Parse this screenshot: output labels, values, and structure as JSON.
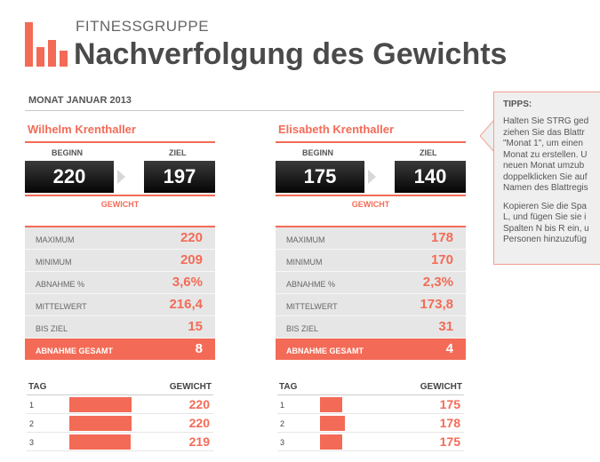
{
  "header": {
    "brand": "FITNESSGRUPPE",
    "title": "Nachverfolgung des Gewichts"
  },
  "month": "MONAT JANUAR 2013",
  "labels": {
    "start": "BEGINN",
    "goal": "ZIEL",
    "weight": "GEWICHT",
    "stats": [
      "MAXIMUM",
      "MINIMUM",
      "ABNAHME %",
      "MITTELWERT",
      "BIS ZIEL"
    ],
    "total": "ABNAHME GESAMT",
    "day": "TAG",
    "weight_col": "GEWICHT"
  },
  "people": [
    {
      "name": "Wilhelm Krenthaller",
      "start": "220",
      "goal": "197",
      "stats": [
        "220",
        "209",
        "3,6%",
        "216,4",
        "15"
      ],
      "total": "8",
      "days": [
        {
          "day": "1",
          "weight": "220",
          "level": 220
        },
        {
          "day": "2",
          "weight": "220",
          "level": 220
        },
        {
          "day": "3",
          "weight": "219",
          "level": 219
        }
      ]
    },
    {
      "name": "Elisabeth Krenthaller",
      "start": "175",
      "goal": "140",
      "stats": [
        "178",
        "170",
        "2,3%",
        "173,8",
        "31"
      ],
      "total": "4",
      "days": [
        {
          "day": "1",
          "weight": "175",
          "level": 175
        },
        {
          "day": "2",
          "weight": "178",
          "level": 178
        },
        {
          "day": "3",
          "weight": "175",
          "level": 175
        }
      ]
    }
  ],
  "tips": {
    "title": "TIPPS:",
    "lines1": [
      "Halten Sie STRG ged",
      "ziehen Sie das Blattr",
      "\"Monat 1\", um einen",
      "Monat zu erstellen. U",
      "neuen Monat umzub",
      "doppelklicken Sie auf",
      "Namen des Blattregis"
    ],
    "lines2": [
      "Kopieren Sie die Spa",
      "L, und fügen Sie sie i",
      "Spalten N bis R ein, u",
      "Personen hinzuzufüg"
    ]
  },
  "colors": {
    "accent": "#f36b57",
    "dark": "#4a4a4a",
    "panel": "#e6e6e6"
  }
}
